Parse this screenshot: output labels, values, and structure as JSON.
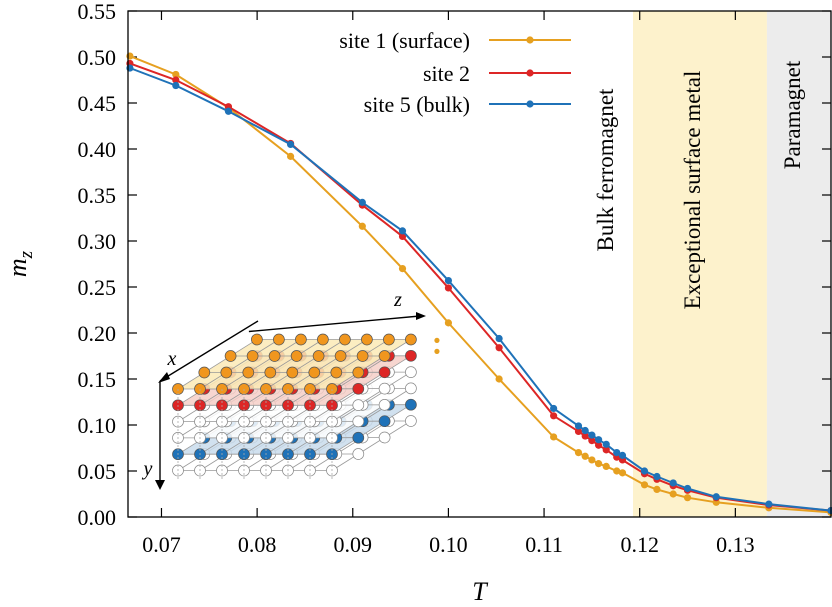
{
  "chart_data": {
    "type": "line",
    "title": "",
    "xlabel": "T",
    "ylabel": "m",
    "ylabel_sub": "z",
    "xlim": [
      0.0665,
      0.14
    ],
    "ylim": [
      0.0,
      0.55
    ],
    "xticks": [
      0.07,
      0.08,
      0.09,
      0.1,
      0.11,
      0.12,
      0.13
    ],
    "xtick_labels": [
      "0.07",
      "0.08",
      "0.09",
      "0.10",
      "0.11",
      "0.12",
      "0.13"
    ],
    "yticks": [
      0.0,
      0.05,
      0.1,
      0.15,
      0.2,
      0.25,
      0.3,
      0.35,
      0.4,
      0.45,
      0.5,
      0.55
    ],
    "ytick_labels": [
      "0.00",
      "0.05",
      "0.10",
      "0.15",
      "0.20",
      "0.25",
      "0.30",
      "0.35",
      "0.40",
      "0.45",
      "0.50",
      "0.55"
    ],
    "legend_position": "top-right",
    "series": [
      {
        "name": "site 1 (surface)",
        "color": "#e6a020",
        "x": [
          0.0667,
          0.0715,
          0.077,
          0.0835,
          0.091,
          0.0952,
          0.1,
          0.1053,
          0.111,
          0.1136,
          0.1143,
          0.115,
          0.1157,
          0.1165,
          0.1176,
          0.1182,
          0.1205,
          0.1218,
          0.1235,
          0.125,
          0.128,
          0.1335,
          0.14
        ],
        "y": [
          0.501,
          0.481,
          0.445,
          0.392,
          0.316,
          0.27,
          0.211,
          0.15,
          0.087,
          0.07,
          0.066,
          0.062,
          0.058,
          0.055,
          0.05,
          0.048,
          0.035,
          0.03,
          0.025,
          0.021,
          0.016,
          0.01,
          0.005
        ]
      },
      {
        "name": "site 2",
        "color": "#dd2626",
        "x": [
          0.0667,
          0.0715,
          0.077,
          0.0835,
          0.091,
          0.0952,
          0.1,
          0.1053,
          0.111,
          0.1136,
          0.1143,
          0.115,
          0.1157,
          0.1165,
          0.1176,
          0.1182,
          0.1205,
          0.1218,
          0.1235,
          0.125,
          0.128,
          0.1335,
          0.14
        ],
        "y": [
          0.493,
          0.475,
          0.446,
          0.406,
          0.339,
          0.305,
          0.249,
          0.184,
          0.11,
          0.093,
          0.088,
          0.083,
          0.078,
          0.073,
          0.065,
          0.062,
          0.047,
          0.041,
          0.034,
          0.029,
          0.021,
          0.013,
          0.007
        ]
      },
      {
        "name": "site 5 (bulk)",
        "color": "#1f72b8",
        "x": [
          0.0667,
          0.0715,
          0.077,
          0.0835,
          0.091,
          0.0952,
          0.1,
          0.1053,
          0.111,
          0.1136,
          0.1143,
          0.115,
          0.1157,
          0.1165,
          0.1176,
          0.1182,
          0.1205,
          0.1218,
          0.1235,
          0.125,
          0.128,
          0.1335,
          0.14
        ],
        "y": [
          0.488,
          0.469,
          0.441,
          0.405,
          0.342,
          0.311,
          0.257,
          0.194,
          0.118,
          0.099,
          0.094,
          0.089,
          0.084,
          0.079,
          0.07,
          0.067,
          0.05,
          0.044,
          0.037,
          0.031,
          0.022,
          0.014,
          0.007
        ]
      }
    ],
    "stray_points": [
      {
        "color": "#e6a020",
        "x": 0.0988,
        "y": 0.18
      },
      {
        "color": "#e6a020",
        "x": 0.0988,
        "y": 0.192
      }
    ],
    "regions": [
      {
        "label": "Bulk ferromagnet",
        "x_from": 0.0665,
        "x_to": 0.1193,
        "color": "#ffffff"
      },
      {
        "label": "Exceptional surface metal",
        "x_from": 0.1193,
        "x_to": 0.1333,
        "color": "#fdf2cc"
      },
      {
        "label": "Paramagnet",
        "x_from": 0.1333,
        "x_to": 0.14,
        "color": "#ececec"
      }
    ],
    "inset": {
      "description": "3D cubic lattice inset",
      "axis_labels": [
        "x",
        "y",
        "z"
      ],
      "layer_colors": [
        "#f0961e",
        "#dd2626",
        "#ffffff",
        "#ffffff",
        "#1f72b8",
        "#ffffff"
      ],
      "layer_plane_colors": [
        "#fbeab6",
        "#f6cfc8",
        "#ffffff",
        "#ffffff",
        "#c9dcec",
        "#ffffff"
      ],
      "rows_per_layer": 4,
      "cols_per_layer": 8
    }
  }
}
